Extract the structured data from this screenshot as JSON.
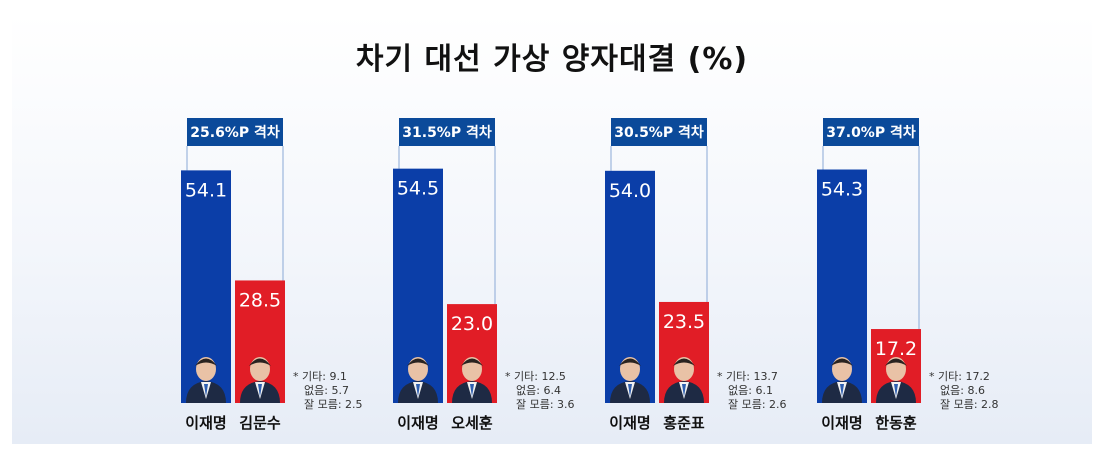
{
  "title": "차기 대선 가상 양자대결 (%)",
  "chart_data": {
    "type": "bar",
    "title": "차기 대선 가상 양자대결 (%)",
    "ylim": [
      0,
      60
    ],
    "colors": {
      "lee": "#0b3ea8",
      "opponent": "#e11d26",
      "gap_box": "#0b4a9a"
    },
    "matchups": [
      {
        "gap_label": "25.6%P 격차",
        "categories": [
          "이재명",
          "김문수"
        ],
        "values": [
          54.1,
          28.5
        ],
        "others": [
          "* 기타: 9.1",
          "없음: 5.7",
          "잘 모름: 2.5"
        ]
      },
      {
        "gap_label": "31.5%P 격차",
        "categories": [
          "이재명",
          "오세훈"
        ],
        "values": [
          54.5,
          23.0
        ],
        "others": [
          "* 기타: 12.5",
          "없음: 6.4",
          "잘 모름: 3.6"
        ]
      },
      {
        "gap_label": "30.5%P 격차",
        "categories": [
          "이재명",
          "홍준표"
        ],
        "values": [
          54.0,
          23.5
        ],
        "others": [
          "* 기타: 13.7",
          "없음: 6.1",
          "잘 모름: 2.6"
        ]
      },
      {
        "gap_label": "37.0%P 격차",
        "categories": [
          "이재명",
          "한동훈"
        ],
        "values": [
          54.3,
          17.2
        ],
        "others": [
          "* 기타: 17.2",
          "없음: 8.6",
          "잘 모름: 2.8"
        ]
      }
    ]
  }
}
